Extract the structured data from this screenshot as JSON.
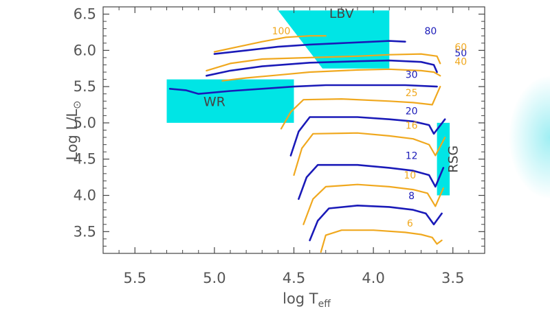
{
  "colors": {
    "background": "#ffffff",
    "frame": "#444444",
    "region": "#00e5e5",
    "series_blue": "#1a1ab8",
    "series_orange": "#f0a81e",
    "glow": "#7fe9ef"
  },
  "chart_data": {
    "type": "line",
    "title": "",
    "xlabel": "log T",
    "xlabel_sub": "eff",
    "ylabel": "Log L/L",
    "ylabel_symbol": "⊙",
    "xlim": [
      5.7,
      3.3
    ],
    "ylim": [
      3.2,
      6.6
    ],
    "x_reversed": true,
    "grid": false,
    "xticks": [
      5.5,
      5.0,
      4.5,
      4.0,
      3.5
    ],
    "xtick_labels": [
      "5.5",
      "5.0",
      "4.5",
      "4.0",
      "3.5"
    ],
    "yticks": [
      3.5,
      4.0,
      4.5,
      5.0,
      5.5,
      6.0,
      6.5
    ],
    "ytick_labels": [
      "3.5",
      "4.0",
      "4.5",
      "5.0",
      "5.5",
      "6.0",
      "6.5"
    ],
    "regions": [
      {
        "label": "LBV",
        "label_at": [
          4.2,
          6.45
        ],
        "polygon": [
          [
            4.6,
            6.55
          ],
          [
            3.9,
            6.55
          ],
          [
            3.9,
            5.75
          ],
          [
            4.32,
            5.75
          ]
        ]
      },
      {
        "label": "WR",
        "label_at": [
          5.0,
          5.23
        ],
        "polygon": [
          [
            5.3,
            5.6
          ],
          [
            4.5,
            5.6
          ],
          [
            4.5,
            5.0
          ],
          [
            5.3,
            5.0
          ]
        ]
      },
      {
        "label": "RSG",
        "label_at": [
          3.47,
          4.5
        ],
        "label_rotation": -90,
        "polygon": [
          [
            3.6,
            5.0
          ],
          [
            3.52,
            5.0
          ],
          [
            3.52,
            4.0
          ],
          [
            3.6,
            4.0
          ]
        ]
      }
    ],
    "series": [
      {
        "label": "6",
        "color": "orange",
        "label_at": [
          3.77,
          3.57
        ],
        "points": [
          [
            4.33,
            3.22
          ],
          [
            4.3,
            3.45
          ],
          [
            4.2,
            3.52
          ],
          [
            4.0,
            3.52
          ],
          [
            3.8,
            3.49
          ],
          [
            3.7,
            3.46
          ],
          [
            3.63,
            3.42
          ],
          [
            3.6,
            3.33
          ],
          [
            3.57,
            3.38
          ]
        ]
      },
      {
        "label": "8",
        "color": "blue",
        "label_at": [
          3.76,
          3.95
        ],
        "points": [
          [
            4.4,
            3.38
          ],
          [
            4.35,
            3.65
          ],
          [
            4.28,
            3.82
          ],
          [
            4.1,
            3.86
          ],
          [
            3.9,
            3.84
          ],
          [
            3.75,
            3.8
          ],
          [
            3.67,
            3.75
          ],
          [
            3.62,
            3.6
          ],
          [
            3.57,
            3.75
          ]
        ]
      },
      {
        "label": "10",
        "color": "orange",
        "label_at": [
          3.77,
          4.23
        ],
        "points": [
          [
            4.44,
            3.6
          ],
          [
            4.38,
            3.95
          ],
          [
            4.3,
            4.12
          ],
          [
            4.1,
            4.15
          ],
          [
            3.9,
            4.12
          ],
          [
            3.75,
            4.08
          ],
          [
            3.66,
            4.03
          ],
          [
            3.61,
            3.85
          ],
          [
            3.56,
            4.1
          ]
        ]
      },
      {
        "label": "12",
        "color": "blue",
        "label_at": [
          3.76,
          4.5
        ],
        "points": [
          [
            4.47,
            3.95
          ],
          [
            4.42,
            4.25
          ],
          [
            4.35,
            4.42
          ],
          [
            4.1,
            4.42
          ],
          [
            3.9,
            4.38
          ],
          [
            3.75,
            4.34
          ],
          [
            3.65,
            4.28
          ],
          [
            3.61,
            4.12
          ],
          [
            3.56,
            4.38
          ]
        ]
      },
      {
        "label": "16",
        "color": "orange",
        "label_at": [
          3.76,
          4.92
        ],
        "points": [
          [
            4.5,
            4.28
          ],
          [
            4.45,
            4.65
          ],
          [
            4.38,
            4.85
          ],
          [
            4.1,
            4.86
          ],
          [
            3.9,
            4.82
          ],
          [
            3.75,
            4.78
          ],
          [
            3.65,
            4.7
          ],
          [
            3.61,
            4.55
          ],
          [
            3.55,
            4.8
          ]
        ]
      },
      {
        "label": "20",
        "color": "blue",
        "label_at": [
          3.76,
          5.12
        ],
        "points": [
          [
            4.52,
            4.55
          ],
          [
            4.47,
            4.88
          ],
          [
            4.4,
            5.08
          ],
          [
            4.1,
            5.08
          ],
          [
            3.9,
            5.05
          ],
          [
            3.75,
            5.02
          ],
          [
            3.65,
            4.97
          ],
          [
            3.62,
            4.85
          ],
          [
            3.55,
            5.05
          ]
        ]
      },
      {
        "label": "25",
        "color": "orange",
        "label_at": [
          3.76,
          5.37
        ],
        "points": [
          [
            4.58,
            4.92
          ],
          [
            4.52,
            5.15
          ],
          [
            4.44,
            5.32
          ],
          [
            4.2,
            5.33
          ],
          [
            3.9,
            5.3
          ],
          [
            3.75,
            5.28
          ],
          [
            3.63,
            5.25
          ],
          [
            3.58,
            5.5
          ]
        ]
      },
      {
        "label": "30",
        "color": "blue",
        "label_at": [
          3.76,
          5.62
        ],
        "points": [
          [
            5.28,
            5.47
          ],
          [
            5.18,
            5.45
          ],
          [
            5.1,
            5.4
          ],
          [
            4.9,
            5.44
          ],
          [
            4.7,
            5.47
          ],
          [
            4.5,
            5.5
          ],
          [
            4.3,
            5.52
          ],
          [
            4.0,
            5.52
          ],
          [
            3.8,
            5.52
          ],
          [
            3.6,
            5.5
          ]
        ]
      },
      {
        "label": "40",
        "color": "orange",
        "label_at": [
          3.45,
          5.8
        ],
        "points": [
          [
            4.95,
            5.58
          ],
          [
            4.8,
            5.62
          ],
          [
            4.6,
            5.66
          ],
          [
            4.4,
            5.7
          ],
          [
            4.1,
            5.73
          ],
          [
            3.9,
            5.74
          ],
          [
            3.7,
            5.72
          ],
          [
            3.62,
            5.7
          ],
          [
            3.58,
            5.65
          ]
        ]
      },
      {
        "label": "50",
        "color": "blue",
        "label_at": [
          3.45,
          5.92
        ],
        "points": [
          [
            5.05,
            5.65
          ],
          [
            4.9,
            5.72
          ],
          [
            4.7,
            5.78
          ],
          [
            4.4,
            5.83
          ],
          [
            4.1,
            5.85
          ],
          [
            3.9,
            5.86
          ],
          [
            3.7,
            5.84
          ],
          [
            3.62,
            5.8
          ],
          [
            3.6,
            5.7
          ]
        ]
      },
      {
        "label": "60",
        "color": "orange",
        "label_at": [
          3.45,
          6.0
        ],
        "points": [
          [
            5.05,
            5.72
          ],
          [
            4.9,
            5.82
          ],
          [
            4.7,
            5.88
          ],
          [
            4.4,
            5.9
          ],
          [
            4.1,
            5.92
          ],
          [
            3.9,
            5.94
          ],
          [
            3.7,
            5.95
          ],
          [
            3.6,
            5.92
          ],
          [
            3.58,
            5.82
          ]
        ]
      },
      {
        "label": "80",
        "color": "blue",
        "label_at": [
          3.64,
          6.22
        ],
        "points": [
          [
            5.0,
            5.95
          ],
          [
            4.8,
            6.0
          ],
          [
            4.6,
            6.05
          ],
          [
            4.4,
            6.08
          ],
          [
            4.2,
            6.1
          ],
          [
            4.0,
            6.12
          ],
          [
            3.9,
            6.13
          ],
          [
            3.8,
            6.12
          ]
        ]
      },
      {
        "label": "100",
        "color": "orange",
        "label_at": [
          4.58,
          6.22
        ],
        "points": [
          [
            5.0,
            5.98
          ],
          [
            4.85,
            6.05
          ],
          [
            4.7,
            6.12
          ],
          [
            4.55,
            6.18
          ],
          [
            4.4,
            6.2
          ],
          [
            4.3,
            6.2
          ]
        ]
      }
    ]
  }
}
